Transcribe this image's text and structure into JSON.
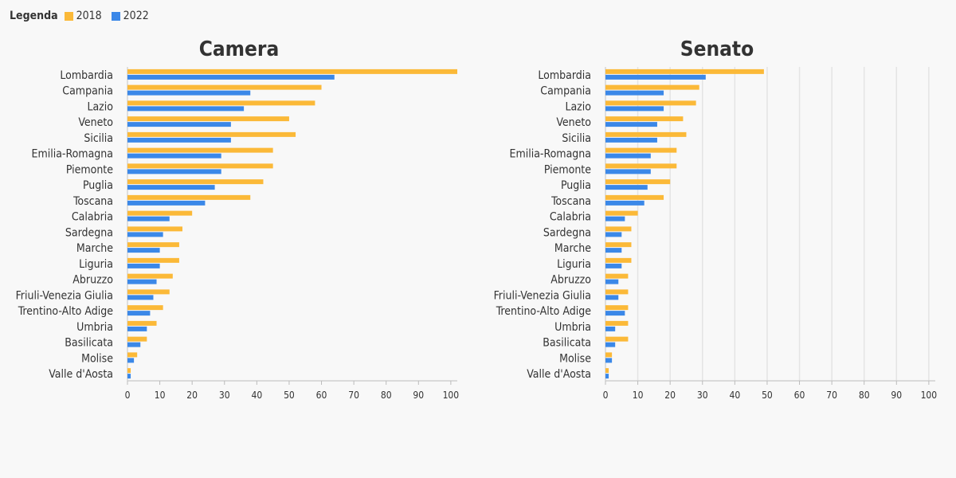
{
  "legend": {
    "title": "Legenda",
    "items": [
      {
        "label": "2018",
        "color": "#fbb938"
      },
      {
        "label": "2022",
        "color": "#3b88e8"
      }
    ]
  },
  "chart_data": [
    {
      "type": "bar",
      "orientation": "horizontal",
      "title": "Camera",
      "categories": [
        "Lombardia",
        "Campania",
        "Lazio",
        "Veneto",
        "Sicilia",
        "Emilia-Romagna",
        "Piemonte",
        "Puglia",
        "Toscana",
        "Calabria",
        "Sardegna",
        "Marche",
        "Liguria",
        "Abruzzo",
        "Friuli-Venezia Giulia",
        "Trentino-Alto Adige",
        "Umbria",
        "Basilicata",
        "Molise",
        "Valle d'Aosta"
      ],
      "series": [
        {
          "name": "2018",
          "color": "#fbb938",
          "values": [
            102,
            60,
            58,
            50,
            52,
            45,
            45,
            42,
            38,
            20,
            17,
            16,
            16,
            14,
            13,
            11,
            9,
            6,
            3,
            1
          ]
        },
        {
          "name": "2022",
          "color": "#3b88e8",
          "values": [
            64,
            38,
            36,
            32,
            32,
            29,
            29,
            27,
            24,
            13,
            11,
            10,
            10,
            9,
            8,
            7,
            6,
            4,
            2,
            1
          ]
        }
      ],
      "xlim": [
        0,
        102
      ],
      "xticks": [
        0,
        10,
        20,
        30,
        40,
        50,
        60,
        70,
        80,
        90,
        100
      ],
      "grid": false
    },
    {
      "type": "bar",
      "orientation": "horizontal",
      "title": "Senato",
      "categories": [
        "Lombardia",
        "Campania",
        "Lazio",
        "Veneto",
        "Sicilia",
        "Emilia-Romagna",
        "Piemonte",
        "Puglia",
        "Toscana",
        "Calabria",
        "Sardegna",
        "Marche",
        "Liguria",
        "Abruzzo",
        "Friuli-Venezia Giulia",
        "Trentino-Alto Adige",
        "Umbria",
        "Basilicata",
        "Molise",
        "Valle d'Aosta"
      ],
      "series": [
        {
          "name": "2018",
          "color": "#fbb938",
          "values": [
            49,
            29,
            28,
            24,
            25,
            22,
            22,
            20,
            18,
            10,
            8,
            8,
            8,
            7,
            7,
            7,
            7,
            7,
            2,
            1
          ]
        },
        {
          "name": "2022",
          "color": "#3b88e8",
          "values": [
            31,
            18,
            18,
            16,
            16,
            14,
            14,
            13,
            12,
            6,
            5,
            5,
            5,
            4,
            4,
            6,
            3,
            3,
            2,
            1
          ]
        }
      ],
      "xlim": [
        0,
        102
      ],
      "xticks": [
        0,
        10,
        20,
        30,
        40,
        50,
        60,
        70,
        80,
        90,
        100
      ],
      "grid": true
    }
  ]
}
